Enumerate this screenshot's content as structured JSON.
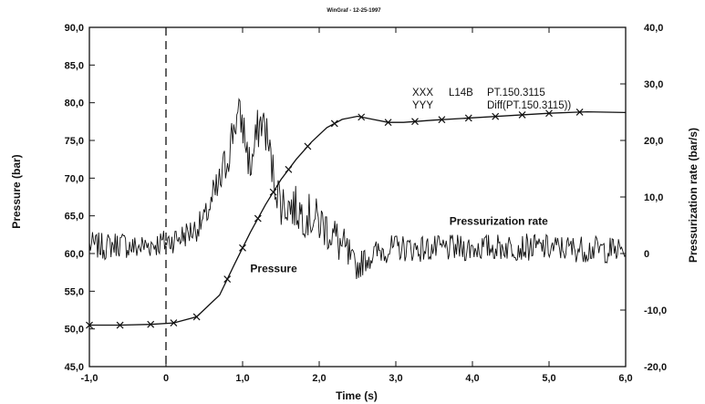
{
  "chart_data": {
    "type": "line",
    "title": "WinGraf - 12-25-1997",
    "xlabel": "Time (s)",
    "ylabel_left": "Pressure (bar)",
    "ylabel_right": "Pressurization rate (bar/s)",
    "xlim": [
      -1.0,
      6.0
    ],
    "ylim_left": [
      45.0,
      90.0
    ],
    "ylim_right": [
      -20.0,
      40.0
    ],
    "x_ticks": [
      "-1,0",
      "0",
      "1,0",
      "2,0",
      "3,0",
      "4,0",
      "5,0",
      "6,0"
    ],
    "y_ticks_left": [
      "45,0",
      "50,0",
      "55,0",
      "60,0",
      "65,0",
      "70,0",
      "75,0",
      "80,0",
      "85,0",
      "90,0"
    ],
    "y_ticks_right": [
      "-20,0",
      "-10,0",
      "0",
      "10,0",
      "20,0",
      "30,0",
      "40,0"
    ],
    "grid": false,
    "event_line_x": 0,
    "legend": [
      {
        "symbol": "XXX",
        "label": "L14B",
        "desc": "PT.150.3115"
      },
      {
        "symbol": "YYY",
        "label": "",
        "desc": "Diff(PT.150.3115))"
      }
    ],
    "annotations": [
      {
        "text": "Pressure",
        "x": 1.1,
        "y": 57.5
      },
      {
        "text": "Pressurization rate",
        "x": 3.7,
        "y": 63.8
      }
    ],
    "series": [
      {
        "name": "Pressure",
        "axis": "left",
        "marker": "x",
        "x": [
          -1.0,
          -0.6,
          -0.2,
          0.1,
          0.4,
          0.7,
          0.9,
          1.1,
          1.3,
          1.5,
          1.7,
          1.9,
          2.1,
          2.3,
          2.5,
          2.7,
          2.9,
          3.1,
          3.5,
          4.0,
          4.5,
          5.0,
          5.5,
          6.0
        ],
        "y": [
          50.5,
          50.5,
          50.6,
          50.8,
          51.6,
          54.5,
          58.7,
          62.8,
          66.5,
          69.8,
          72.5,
          74.8,
          76.7,
          77.8,
          78.2,
          77.8,
          77.4,
          77.4,
          77.7,
          78.0,
          78.3,
          78.6,
          78.8,
          78.7
        ],
        "markers_x": [
          -1.0,
          -0.6,
          -0.2,
          0.1,
          0.4,
          0.8,
          1.0,
          1.2,
          1.4,
          1.6,
          1.85,
          2.2,
          2.55,
          2.9,
          3.25,
          3.6,
          3.95,
          4.3,
          4.65,
          5.0,
          5.4
        ]
      },
      {
        "name": "Pressurization rate",
        "axis": "right",
        "marker": "none",
        "x": [
          -1.0,
          -0.8,
          -0.6,
          -0.4,
          -0.2,
          0.0,
          0.2,
          0.4,
          0.5,
          0.6,
          0.7,
          0.8,
          0.85,
          0.9,
          0.95,
          1.0,
          1.05,
          1.1,
          1.15,
          1.2,
          1.25,
          1.3,
          1.35,
          1.4,
          1.5,
          1.6,
          1.7,
          1.8,
          1.9,
          2.0,
          2.1,
          2.2,
          2.3,
          2.4,
          2.5,
          2.6,
          2.8,
          3.0,
          3.5,
          4.0,
          4.5,
          5.0,
          5.5,
          6.0
        ],
        "y": [
          1.5,
          1.2,
          1.8,
          1.0,
          1.6,
          2.0,
          3.0,
          4.5,
          6.0,
          9.0,
          12.0,
          17.0,
          20.0,
          23.5,
          24.0,
          23.0,
          19.0,
          15.0,
          18.0,
          22.0,
          23.5,
          22.0,
          18.0,
          14.0,
          9.0,
          8.5,
          8.0,
          7.0,
          6.5,
          5.5,
          4.5,
          3.0,
          1.0,
          -1.0,
          -2.5,
          -1.0,
          0.5,
          1.0,
          0.8,
          1.0,
          1.2,
          1.0,
          0.8,
          0.5
        ]
      }
    ]
  }
}
